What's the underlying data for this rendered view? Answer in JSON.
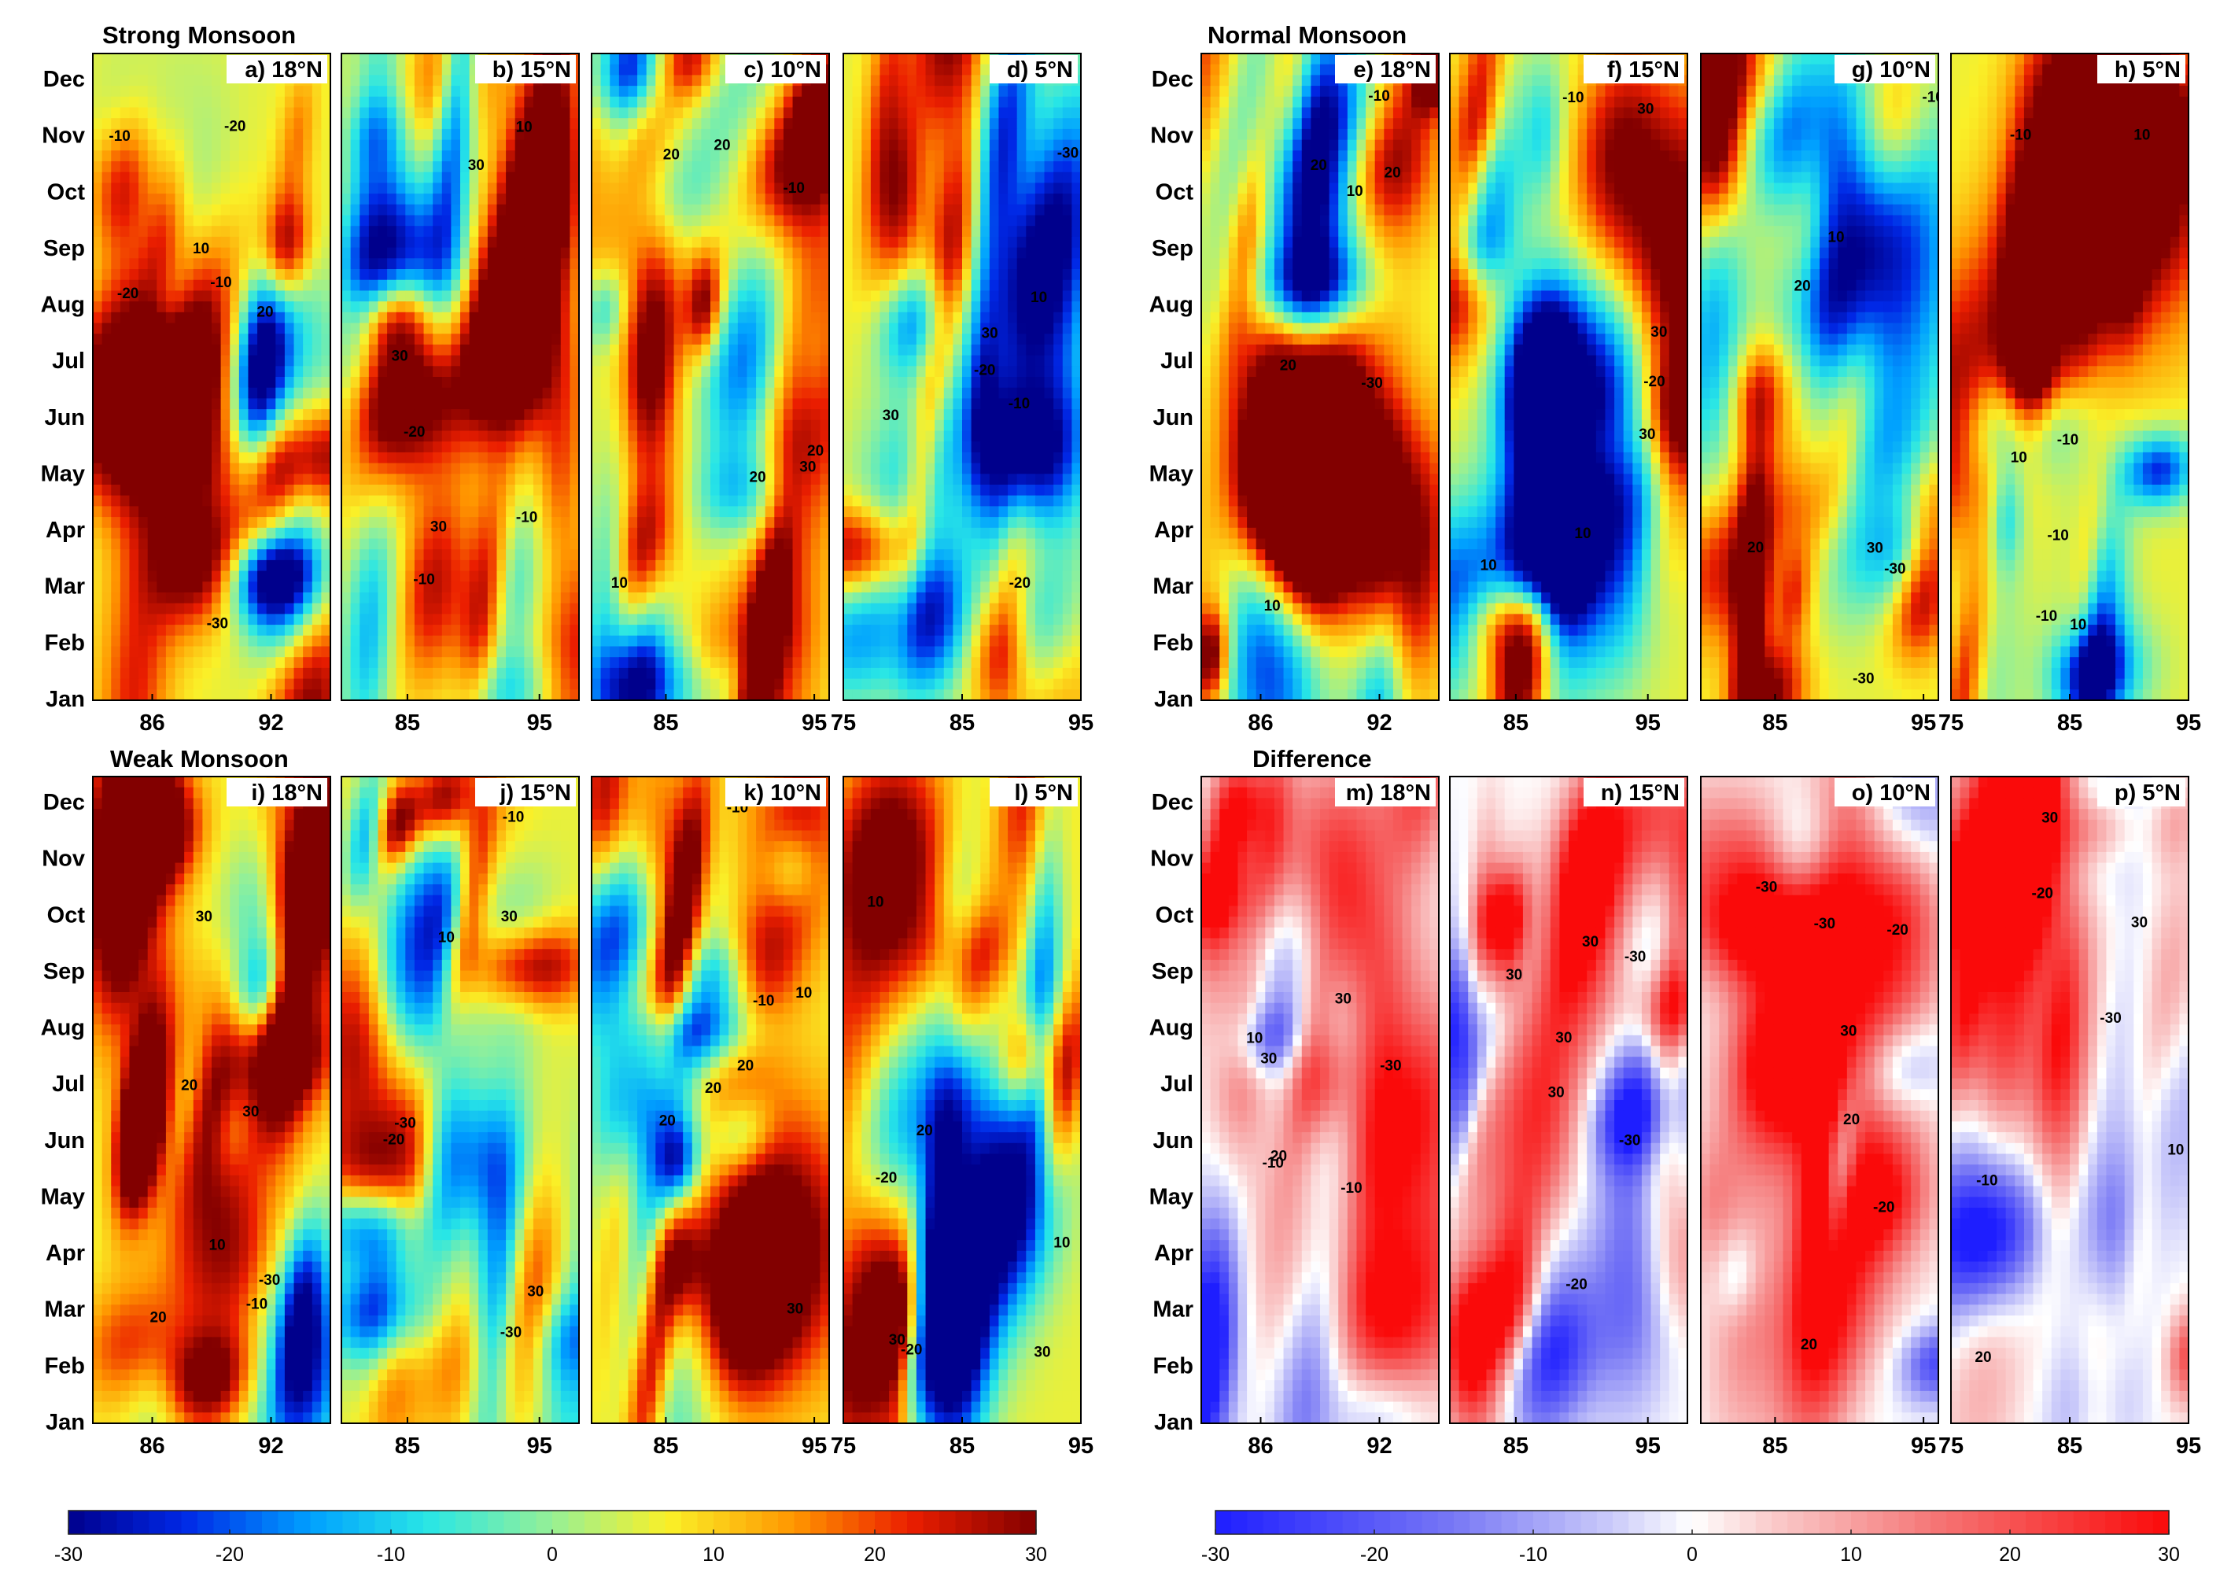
{
  "chart_data": {
    "type": "heatmap",
    "description_variable": "anomaly field (Hovmoller: longitude vs month)",
    "y_axis": {
      "months": [
        "Jan",
        "Feb",
        "Mar",
        "Apr",
        "May",
        "Jun",
        "Jul",
        "Aug",
        "Sep",
        "Oct",
        "Nov",
        "Dec"
      ]
    },
    "colorbars": [
      {
        "name": "main",
        "range": [
          -30,
          30
        ],
        "ticks": [
          "-30",
          "-20",
          "-10",
          "0",
          "10",
          "20",
          "30"
        ],
        "colormap": "jet"
      },
      {
        "name": "difference",
        "range": [
          -30,
          30
        ],
        "ticks": [
          "-30",
          "-20",
          "-10",
          "0",
          "10",
          "20",
          "30"
        ],
        "colormap": "blue-white-red"
      }
    ],
    "groups": [
      {
        "title": "Strong Monsoon",
        "colormap": "jet",
        "panels": [
          {
            "label": "a) 18°N",
            "xlim": [
              83,
              95
            ],
            "xticks": [
              "86",
              "92"
            ]
          },
          {
            "label": "b) 15°N",
            "xlim": [
              80,
              98
            ],
            "xticks": [
              "85",
              "95"
            ]
          },
          {
            "label": "c) 10°N",
            "xlim": [
              80,
              96
            ],
            "xticks": [
              "85",
              "95"
            ]
          },
          {
            "label": "d) 5°N",
            "xlim": [
              75,
              95
            ],
            "xticks": [
              "75",
              "85",
              "95"
            ]
          }
        ]
      },
      {
        "title": "Normal Monsoon",
        "colormap": "jet",
        "panels": [
          {
            "label": "e) 18°N",
            "xlim": [
              83,
              95
            ],
            "xticks": [
              "86",
              "92"
            ]
          },
          {
            "label": "f) 15°N",
            "xlim": [
              80,
              98
            ],
            "xticks": [
              "85",
              "95"
            ]
          },
          {
            "label": "g) 10°N",
            "xlim": [
              80,
              96
            ],
            "xticks": [
              "85",
              "95"
            ]
          },
          {
            "label": "h) 5°N",
            "xlim": [
              75,
              95
            ],
            "xticks": [
              "75",
              "85",
              "95"
            ]
          }
        ]
      },
      {
        "title": "Weak Monsoon",
        "colormap": "jet",
        "panels": [
          {
            "label": "i) 18°N",
            "xlim": [
              83,
              95
            ],
            "xticks": [
              "86",
              "92"
            ]
          },
          {
            "label": "j) 15°N",
            "xlim": [
              80,
              98
            ],
            "xticks": [
              "85",
              "95"
            ]
          },
          {
            "label": "k) 10°N",
            "xlim": [
              80,
              96
            ],
            "xticks": [
              "85",
              "95"
            ]
          },
          {
            "label": "l) 5°N",
            "xlim": [
              75,
              95
            ],
            "xticks": [
              "75",
              "85",
              "95"
            ]
          }
        ]
      },
      {
        "title": "Difference",
        "colormap": "bwr",
        "panels": [
          {
            "label": "m) 18°N",
            "xlim": [
              83,
              95
            ],
            "xticks": [
              "86",
              "92"
            ]
          },
          {
            "label": "n) 15°N",
            "xlim": [
              80,
              98
            ],
            "xticks": [
              "85",
              "95"
            ]
          },
          {
            "label": "o) 10°N",
            "xlim": [
              80,
              96
            ],
            "xticks": [
              "85",
              "95"
            ]
          },
          {
            "label": "p) 5°N",
            "xlim": [
              75,
              95
            ],
            "xticks": [
              "75",
              "85",
              "95"
            ]
          }
        ]
      }
    ],
    "contour_levels_labeled": [
      "-30",
      "-20",
      "-10",
      "10",
      "20",
      "30"
    ]
  }
}
